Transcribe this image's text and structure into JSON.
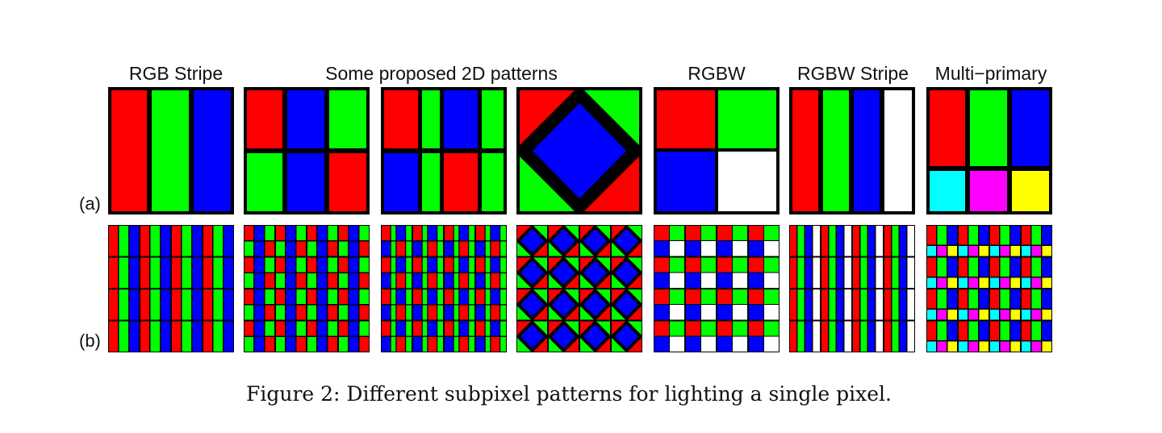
{
  "headers": {
    "rgb_stripe": "RGB Stripe",
    "proposed_2d": "Some proposed 2D patterns",
    "rgbw": "RGBW",
    "rgbw_stripe": "RGBW Stripe",
    "multi_primary": "Multi−primary"
  },
  "row_labels": {
    "a": "(a)",
    "b": "(b)"
  },
  "caption": "Figure 2: Different subpixel patterns for lighting a single pixel.",
  "colors": {
    "red": "#ff0000",
    "green": "#00ff00",
    "blue": "#0000ff",
    "white": "#ffffff",
    "cyan": "#00ffff",
    "magenta": "#ff00ff",
    "yellow": "#ffff00",
    "border": "#000000"
  },
  "patterns": [
    {
      "id": "rgb-stripe",
      "name": "RGB Stripe",
      "subpixels": [
        "red",
        "green",
        "blue"
      ]
    },
    {
      "id": "2d-pattern-1",
      "subpixels": [
        "red",
        "blue",
        "green",
        "green",
        "blue",
        "red"
      ]
    },
    {
      "id": "2d-pattern-2",
      "subpixels": [
        "red",
        "green",
        "blue",
        "green",
        "blue",
        "green",
        "red",
        "green"
      ]
    },
    {
      "id": "2d-pattern-3",
      "subpixels": [
        "blue",
        "red",
        "green",
        "green",
        "red"
      ]
    },
    {
      "id": "rgbw",
      "name": "RGBW",
      "subpixels": [
        "red",
        "green",
        "blue",
        "white"
      ]
    },
    {
      "id": "rgbw-stripe",
      "name": "RGBW Stripe",
      "subpixels": [
        "red",
        "green",
        "blue",
        "white"
      ]
    },
    {
      "id": "multi-primary",
      "name": "Multi−primary",
      "subpixels": [
        "red",
        "green",
        "blue",
        "cyan",
        "magenta",
        "yellow"
      ]
    }
  ]
}
